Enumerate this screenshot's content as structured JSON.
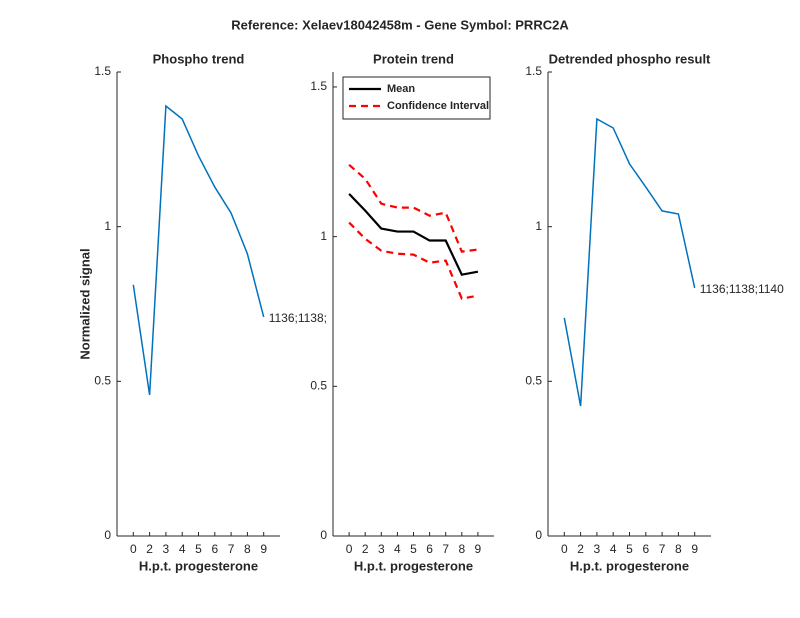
{
  "title": "Reference:  Xelaev18042458m - Gene Symbol:  PRRC2A",
  "chart_data": [
    {
      "type": "line",
      "title": "Phospho trend",
      "x_label": "H.p.t. progesterone",
      "y_label": "Normalized signal",
      "categories": [
        "0",
        "2",
        "3",
        "4",
        "5",
        "6",
        "7",
        "8",
        "9"
      ],
      "series": [
        {
          "color": "#0072bd",
          "values": [
            0.812,
            0.456,
            1.39,
            1.348,
            1.229,
            1.128,
            1.044,
            0.912,
            0.708
          ]
        }
      ],
      "annotation": "1136;1138;",
      "ylim": [
        0,
        1.5
      ],
      "yticks": [
        0,
        0.5,
        1,
        1.5
      ]
    },
    {
      "type": "line",
      "title": "Protein trend",
      "x_label": "H.p.t. progesterone",
      "categories": [
        "0",
        "2",
        "3",
        "4",
        "5",
        "6",
        "7",
        "8",
        "9"
      ],
      "series": [
        {
          "name": "Mean",
          "color": "#000000",
          "values": [
            1.143,
            1.087,
            1.027,
            1.017,
            1.017,
            0.987,
            0.987,
            0.873,
            0.883
          ]
        },
        {
          "name": "Confidence Interval",
          "color": "#ff0000",
          "dashed": true,
          "values": [
            1.24,
            1.193,
            1.11,
            1.097,
            1.097,
            1.07,
            1.08,
            0.95,
            0.957
          ]
        },
        {
          "color": "#ff0000",
          "dashed": true,
          "values": [
            1.047,
            0.993,
            0.953,
            0.943,
            0.94,
            0.913,
            0.92,
            0.793,
            0.803
          ]
        }
      ],
      "legend": "upper left",
      "ylim": [
        0,
        1.55
      ],
      "yticks": [
        0,
        0.5,
        1,
        1.5
      ]
    },
    {
      "type": "line",
      "title": "Detrended phospho result",
      "x_label": "H.p.t. progesterone",
      "categories": [
        "0",
        "2",
        "3",
        "4",
        "5",
        "6",
        "7",
        "8",
        "9"
      ],
      "series": [
        {
          "color": "#0072bd",
          "values": [
            0.705,
            0.42,
            1.348,
            1.319,
            1.203,
            1.128,
            1.051,
            1.041,
            0.802
          ]
        }
      ],
      "annotation": "1136;1138;1140",
      "ylim": [
        0,
        1.5
      ],
      "yticks": [
        0,
        0.5,
        1,
        1.5
      ]
    }
  ]
}
